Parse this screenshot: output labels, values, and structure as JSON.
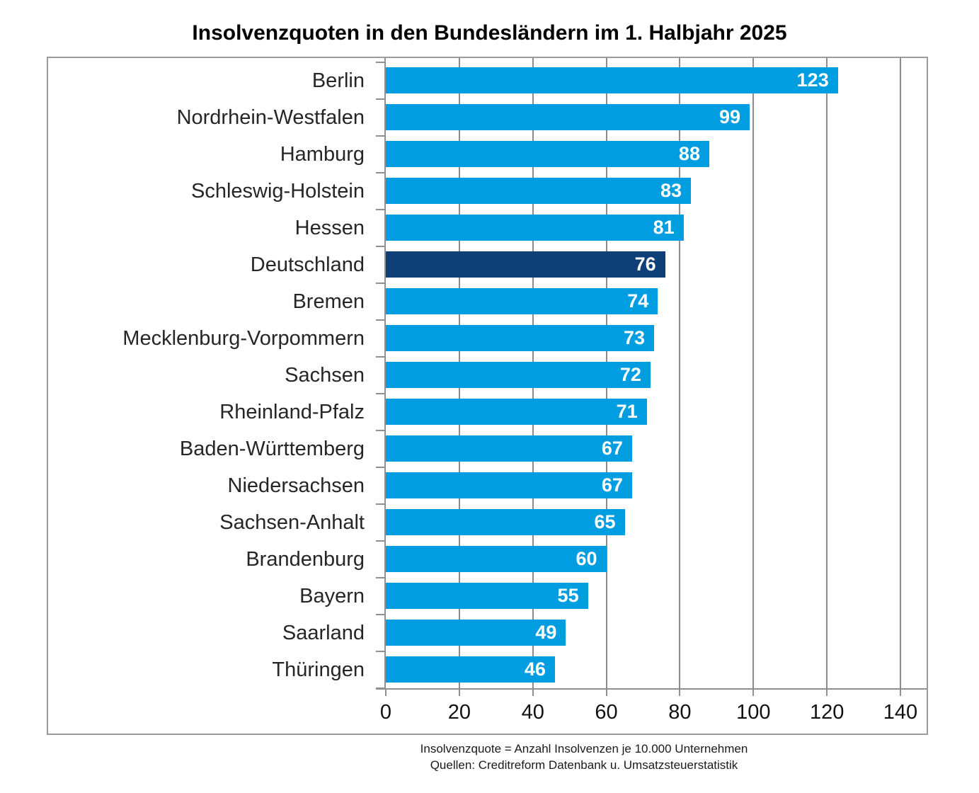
{
  "title": "Insolvenzquoten in den Bundesländern im 1. Halbjahr 2025",
  "footnote": {
    "line1": "Insolvenzquote = Anzahl Insolvenzen je 10.000 Unternehmen",
    "line2": "Quellen: Creditreform Datenbank u. Umsatzsteuerstatistik"
  },
  "colors": {
    "bar": "#009EE0",
    "highlight_bar": "#0E4077",
    "grid": "#8C8C8C",
    "axis": "#8F8F8F",
    "frame": "#9B9B9B",
    "value_label": "#FFFFFF",
    "category_label": "#262626"
  },
  "chart_data": {
    "type": "bar",
    "orientation": "horizontal",
    "title": "Insolvenzquoten in den Bundesländern im 1. Halbjahr 2025",
    "categories": [
      "Berlin",
      "Nordrhein-Westfalen",
      "Hamburg",
      "Schleswig-Holstein",
      "Hessen",
      "Deutschland",
      "Bremen",
      "Mecklenburg-Vorpommern",
      "Sachsen",
      "Rheinland-Pfalz",
      "Baden-Württemberg",
      "Niedersachsen",
      "Sachsen-Anhalt",
      "Brandenburg",
      "Bayern",
      "Saarland",
      "Thüringen"
    ],
    "values": [
      123,
      99,
      88,
      83,
      81,
      76,
      74,
      73,
      72,
      71,
      67,
      67,
      65,
      60,
      55,
      49,
      46
    ],
    "highlight_category": "Deutschland",
    "highlight_index": 5,
    "xlabel": "",
    "ylabel": "",
    "xlim": [
      0,
      140
    ],
    "xticks": [
      0,
      20,
      40,
      60,
      80,
      100,
      120,
      140
    ],
    "grid": true,
    "legend": false,
    "value_labels": "inside-end"
  }
}
